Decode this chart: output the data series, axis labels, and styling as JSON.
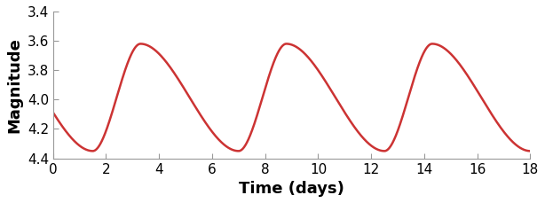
{
  "title": "",
  "xlabel": "Time (days)",
  "ylabel": "Magnitude",
  "xlim": [
    0,
    18
  ],
  "ylim": [
    4.4,
    3.4
  ],
  "xticks": [
    0,
    2,
    4,
    6,
    8,
    10,
    12,
    14,
    16,
    18
  ],
  "yticks": [
    3.4,
    3.6,
    3.8,
    4.0,
    4.2,
    4.4
  ],
  "line_color": "#cc3333",
  "line_width": 1.8,
  "period": 5.5,
  "trough_time": 1.5,
  "peak_time": 3.3,
  "mag_trough": 4.35,
  "mag_peak": 3.62,
  "mag_start": 4.1,
  "background_color": "#ffffff",
  "xlabel_fontsize": 13,
  "ylabel_fontsize": 13,
  "tick_fontsize": 11
}
